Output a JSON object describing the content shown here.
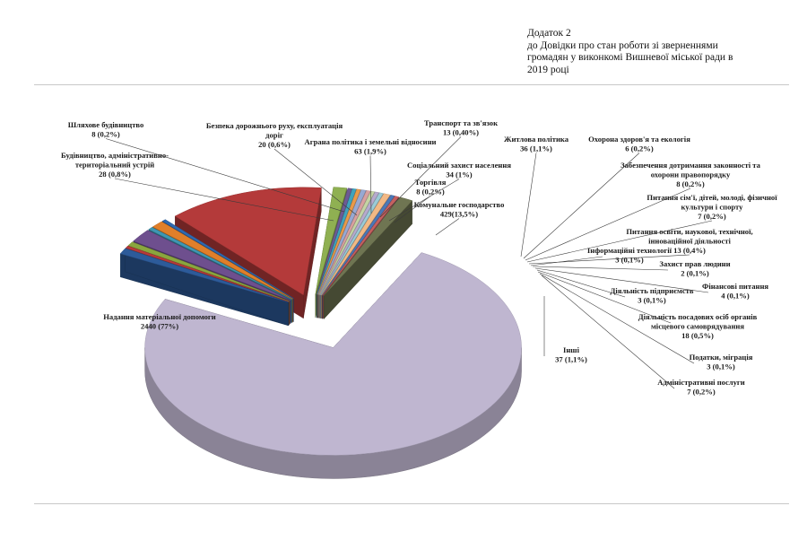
{
  "header": {
    "line1": "Додаток 2",
    "line2": "до Довідки про стан роботи зі зверненнями",
    "line3": "громадян у виконкомі Вишневої міської ради в",
    "line4": "2019 році"
  },
  "chart_data": {
    "type": "pie",
    "three_d": true,
    "title": "",
    "categories": [
      "Надання матеріальної допомоги",
      "Будівництво, адміністративно-територіальний устрій",
      "Шляхове будівництво",
      "Безпека дорожнього руху, експлуатація доріг",
      "Аграна політика і земельні відносини",
      "Транспорт та зв'язок",
      "Соціальний захист населення",
      "Торгівля",
      "Комунальне господарство",
      "Житлова політика",
      "Охорона здоров'я та екологія",
      "Забезпечення дотримання законності та охорони правопорядку",
      "Питання сім'ї, дітей, молоді, фізичної культури і спорту",
      "Питання освіти, наукової, технічної, інноваційної діяльності",
      "Інформаційні технології",
      "Захист прав людини",
      "Фінансові питання",
      "Діяльність підприємств",
      "Діяльність посадових осіб органів місцевого самоврядування",
      "Податки, міграція",
      "Адміністративні послуги",
      "Інші"
    ],
    "values": [
      2440,
      28,
      8,
      20,
      63,
      13,
      34,
      8,
      429,
      36,
      6,
      8,
      7,
      13,
      3,
      2,
      4,
      3,
      18,
      3,
      7,
      37
    ],
    "value_labels": [
      "2440 (77%)",
      "28 (0,8%)",
      "8 (0,2%)",
      "20 (0,6%)",
      "63 (1,9%)",
      "13 (0,40%)",
      "34 (1%)",
      "8 (0,2%)",
      "429(13,5%)",
      "36 (1,1%)",
      "6 (0,2%)",
      "8 (0,2%)",
      "7 (0,2%)",
      "13 (0,4%)",
      "3 (0,1%)",
      "2 (0,1%)",
      "4 (0,1%)",
      "3 (0,1%)",
      "18 (0,5%)",
      "3 (0,1%)",
      "7 (0,2%)",
      "37 (1,1%)"
    ],
    "colors": [
      "#bfb6d0",
      "#2d5b9a",
      "#b83a3a",
      "#8aa63e",
      "#6e4f8e",
      "#3f97b3",
      "#e07f2a",
      "#2f69b0",
      "#b43a3a",
      "#8fb052",
      "#6d5a94",
      "#3fa3bd",
      "#e89a4a",
      "#97a9d2",
      "#d8a0a0",
      "#c4d4a4",
      "#b6aacd",
      "#9bcbd6",
      "#f2b985",
      "#4b78b8",
      "#c56060",
      "#6f7552"
    ]
  }
}
